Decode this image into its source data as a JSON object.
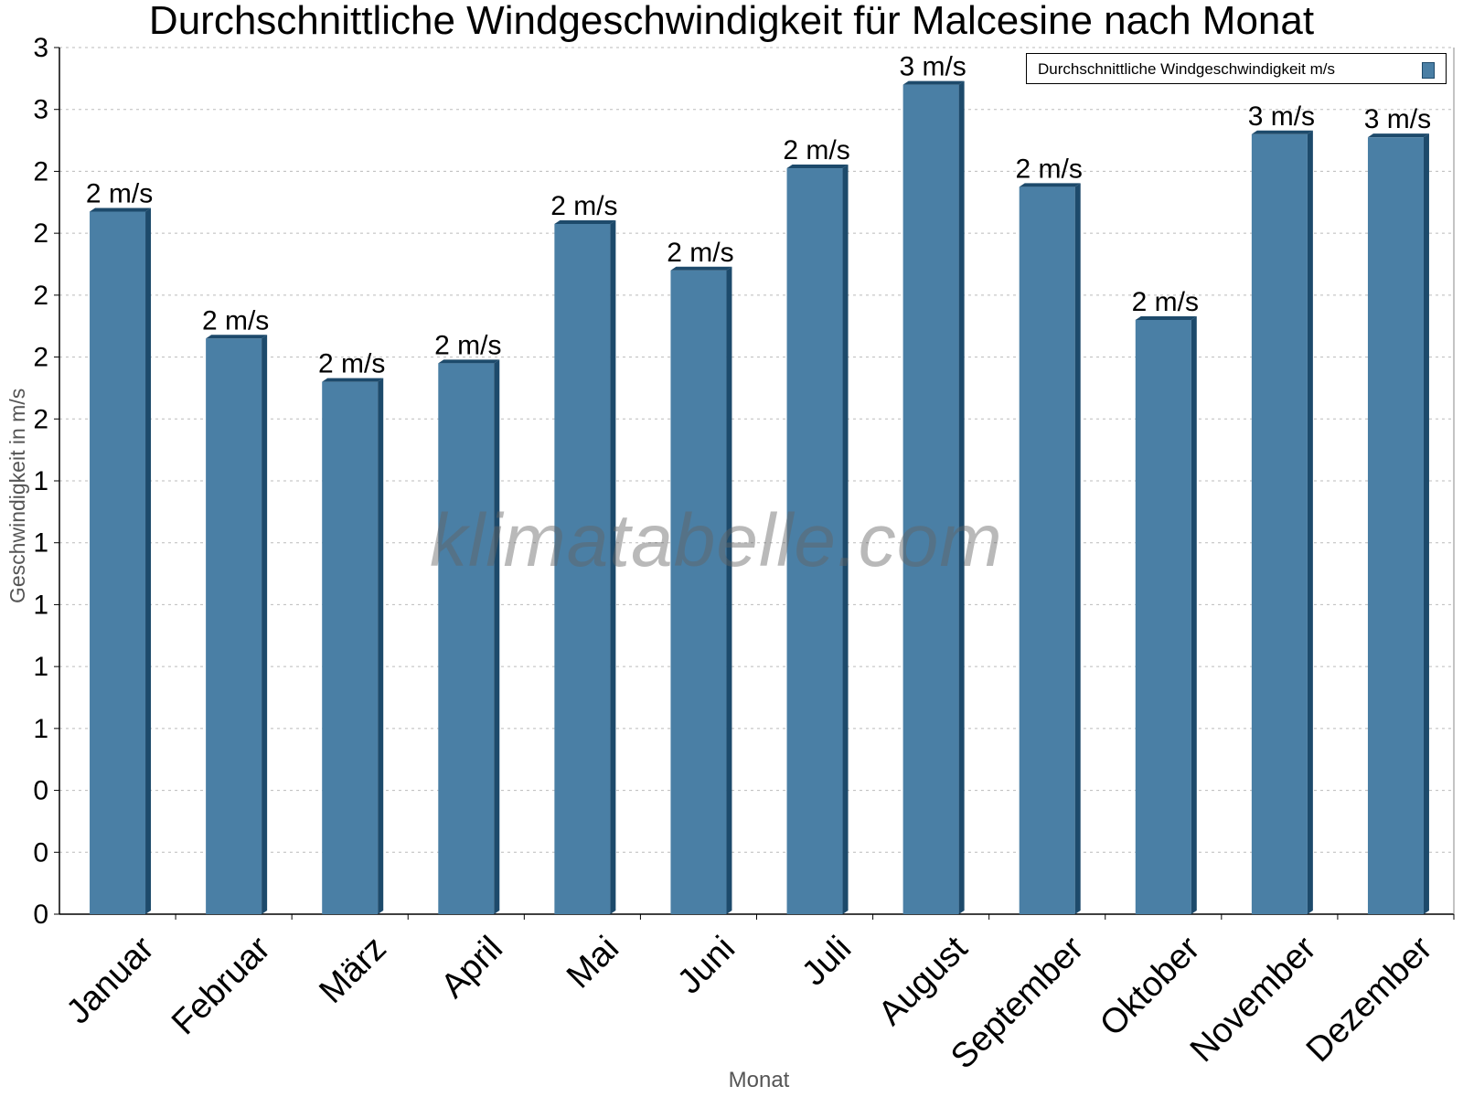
{
  "chart_data": {
    "type": "bar",
    "title": "Durchschnittliche Windgeschwindigkeit für Malcesine nach Monat",
    "xlabel": "Monat",
    "ylabel": "Geschwindigkeit in m/s",
    "categories": [
      "Januar",
      "Februar",
      "März",
      "April",
      "Mai",
      "Juni",
      "Juli",
      "August",
      "September",
      "Oktober",
      "November",
      "Dezember"
    ],
    "series": [
      {
        "name": "Durchschnittliche Windgeschwindigkeit m/s",
        "values": [
          2.27,
          1.86,
          1.72,
          1.78,
          2.23,
          2.08,
          2.41,
          2.68,
          2.35,
          1.92,
          2.52,
          2.51
        ],
        "labels": [
          "2 m/s",
          "2 m/s",
          "2 m/s",
          "2 m/s",
          "2 m/s",
          "2 m/s",
          "2 m/s",
          "3 m/s",
          "2 m/s",
          "2 m/s",
          "3 m/s",
          "3 m/s"
        ]
      }
    ],
    "ylim": [
      0,
      2.8
    ],
    "yticks": [
      0,
      0.2,
      0.4,
      0.6,
      0.8,
      1.0,
      1.2,
      1.4,
      1.6,
      1.8,
      2.0,
      2.2,
      2.4,
      2.6,
      2.8
    ],
    "ytick_labels": [
      "0",
      "0",
      "0",
      "1",
      "1",
      "1",
      "1",
      "1",
      "2",
      "2",
      "2",
      "2",
      "2",
      "3",
      "3"
    ],
    "grid": true,
    "legend_position": "top-right",
    "watermark": "klimatabelle.com",
    "colors": {
      "bar": "#4a7fa5",
      "bar_side": "#1d4a6b",
      "bar_top": "#1d4a6b",
      "grid": "#bbbbbb"
    }
  }
}
